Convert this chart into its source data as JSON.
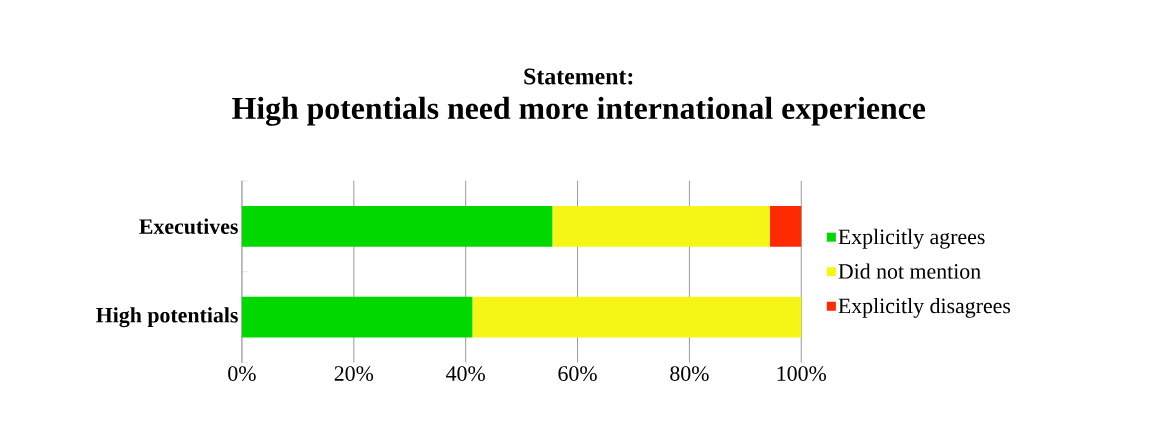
{
  "chart_data": {
    "type": "bar",
    "orientation": "horizontal",
    "stacked": true,
    "title": "Statement:",
    "subtitle": "High potentials need more international experience",
    "categories": [
      "Executives",
      "High potentials"
    ],
    "series": [
      {
        "name": "Explicitly agrees",
        "color": "#00d800",
        "values": [
          55.5,
          41.2
        ]
      },
      {
        "name": "Did not mention",
        "color": "#f5f516",
        "values": [
          38.9,
          58.8
        ]
      },
      {
        "name": "Explicitly disagrees",
        "color": "#ff2a00",
        "values": [
          5.6,
          0
        ]
      }
    ],
    "xlim": [
      0,
      100
    ],
    "xticks": [
      {
        "value": 0,
        "label": "0%"
      },
      {
        "value": 20,
        "label": "20%"
      },
      {
        "value": 40,
        "label": "40%"
      },
      {
        "value": 60,
        "label": "60%"
      },
      {
        "value": 80,
        "label": "80%"
      },
      {
        "value": 100,
        "label": "100%"
      }
    ],
    "grid": "x",
    "legend": "right"
  }
}
